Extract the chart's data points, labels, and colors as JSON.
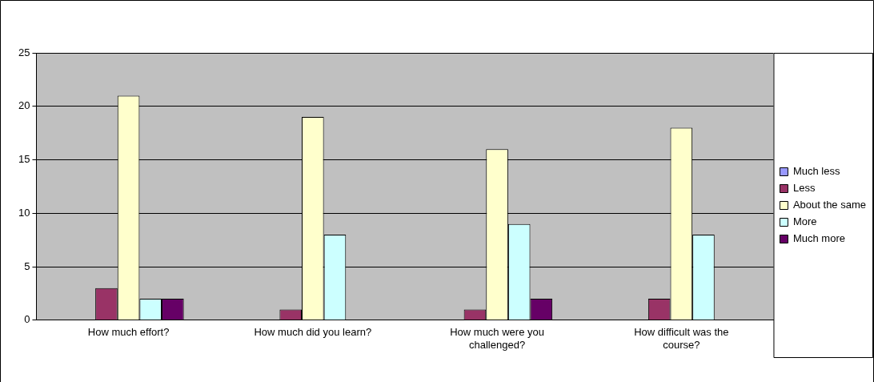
{
  "chart_data": {
    "type": "bar",
    "categories": [
      "How much effort?",
      "How much did you learn?",
      "How much were you challenged?",
      "How difficult was the course?"
    ],
    "series": [
      {
        "name": "Much less",
        "color": "#9999ff",
        "values": [
          0,
          0,
          0,
          0
        ]
      },
      {
        "name": "Less",
        "color": "#993366",
        "values": [
          3,
          1,
          1,
          2
        ]
      },
      {
        "name": "About the same",
        "color": "#ffffcc",
        "values": [
          21,
          19,
          16,
          18
        ]
      },
      {
        "name": "More",
        "color": "#ccffff",
        "values": [
          2,
          8,
          9,
          8
        ]
      },
      {
        "name": "Much more",
        "color": "#660066",
        "values": [
          2,
          0,
          2,
          0
        ]
      }
    ],
    "ylim": [
      0,
      25
    ],
    "yticks": [
      0,
      5,
      10,
      15,
      20,
      25
    ],
    "grid": "y",
    "legend": "right"
  }
}
